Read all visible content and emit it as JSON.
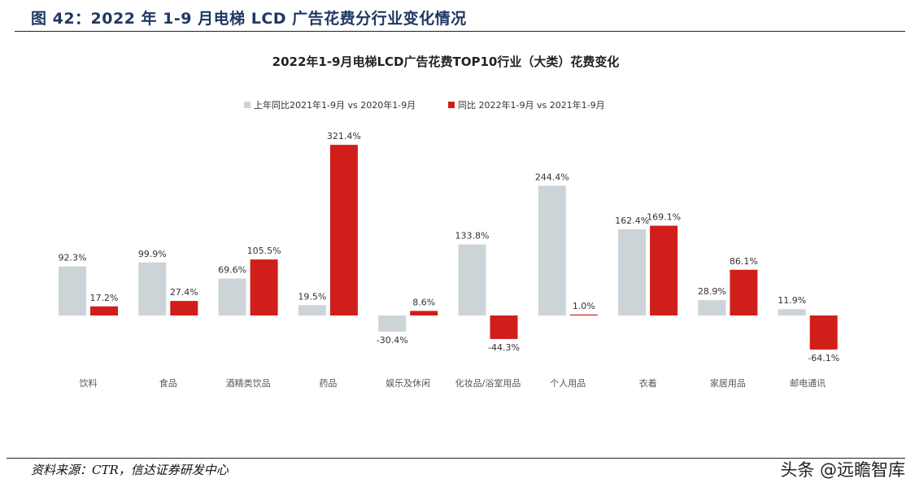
{
  "figure": {
    "title": "图 42：2022 年 1-9 月电梯 LCD 广告花费分行业变化情况",
    "source": "资料来源：CTR，信达证券研发中心",
    "watermark": "头条 @远瞻智库"
  },
  "colors": {
    "prev_year": "#cdd4d8",
    "this_year": "#d01f1a",
    "title_blue": "#1f3864"
  },
  "chart_data": {
    "type": "bar",
    "title": "2022年1-9月电梯LCD广告花费TOP10行业（大类）花费变化",
    "xlabel": "",
    "ylabel": "",
    "ylim": [
      -70,
      330
    ],
    "grid": false,
    "legend_position": "top-center",
    "categories": [
      "饮料",
      "食品",
      "酒精类饮品",
      "药品",
      "娱乐及休闲",
      "化妆品/浴室用品",
      "个人用品",
      "衣着",
      "家居用品",
      "邮电通讯"
    ],
    "series": [
      {
        "name": "上年同比2021年1-9月 vs 2020年1-9月",
        "color": "#cdd4d8",
        "values": [
          92.3,
          99.9,
          69.6,
          19.5,
          -30.4,
          133.8,
          244.4,
          162.4,
          28.9,
          11.9
        ],
        "labels": [
          "92.3%",
          "99.9%",
          "69.6%",
          "19.5%",
          "-30.4%",
          "133.8%",
          "244.4%",
          "162.4%",
          "28.9%",
          "11.9%"
        ]
      },
      {
        "name": "同比 2022年1-9月 vs 2021年1-9月",
        "color": "#d01f1a",
        "values": [
          17.2,
          27.4,
          105.5,
          321.4,
          8.6,
          -44.3,
          1.0,
          169.1,
          86.1,
          -64.1
        ],
        "labels": [
          "17.2%",
          "27.4%",
          "105.5%",
          "321.4%",
          "8.6%",
          "-44.3%",
          "1.0%",
          "169.1%",
          "86.1%",
          "-64.1%"
        ]
      }
    ]
  }
}
